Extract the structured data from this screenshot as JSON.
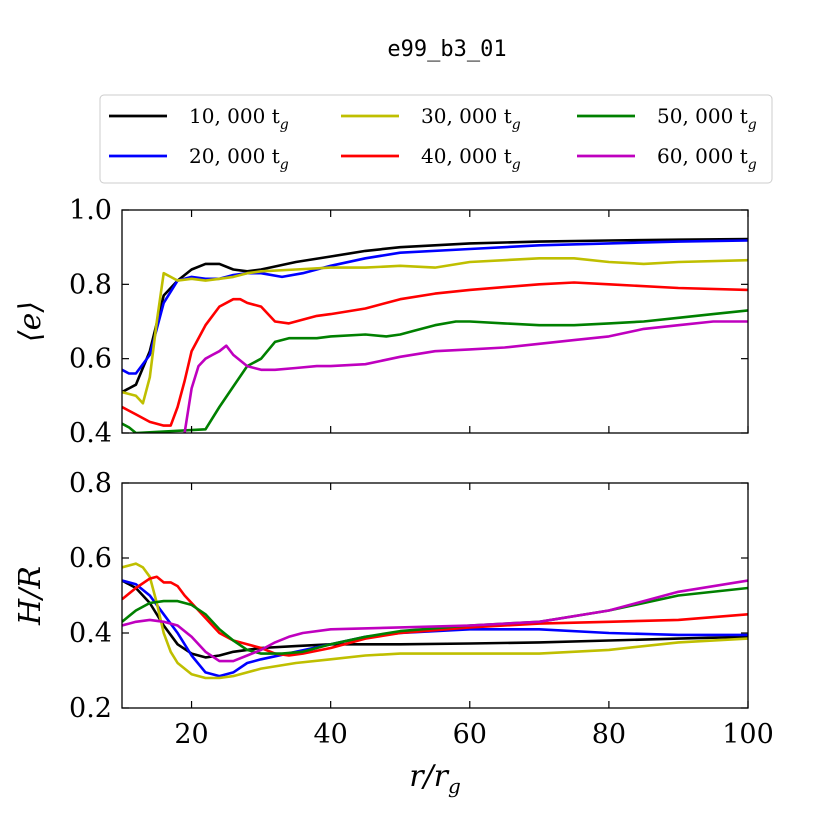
{
  "chart_data": {
    "type": "line",
    "title": "e99_b3_01",
    "legend": {
      "placement": "top",
      "entries": [
        {
          "label": "10, 000 t",
          "sub": "g",
          "color": "#000000"
        },
        {
          "label": "20, 000 t",
          "sub": "g",
          "color": "#0000ff"
        },
        {
          "label": "30, 000 t",
          "sub": "g",
          "color": "#bfbf00"
        },
        {
          "label": "40, 000 t",
          "sub": "g",
          "color": "#ff0000"
        },
        {
          "label": "50, 000 t",
          "sub": "g",
          "color": "#008000"
        },
        {
          "label": "60, 000 t",
          "sub": "g",
          "color": "#bf00bf"
        }
      ]
    },
    "xlabel": "r/r",
    "xlabel_sub": "g",
    "xlim": [
      10,
      100
    ],
    "xticks": [
      20,
      40,
      60,
      80,
      100
    ],
    "panels": [
      {
        "ylabel": "⟨e⟩",
        "ylim": [
          0.4,
          1.0
        ],
        "yticks": [
          "0.4",
          "0.6",
          "0.8",
          "1.0"
        ],
        "series": [
          {
            "name": "10, 000 t_g",
            "color": "#000000",
            "x": [
              10,
              12,
              14,
              16,
              18,
              20,
              22,
              24,
              26,
              28,
              30,
              35,
              40,
              45,
              50,
              60,
              70,
              80,
              90,
              100
            ],
            "y": [
              0.51,
              0.53,
              0.62,
              0.77,
              0.81,
              0.84,
              0.855,
              0.855,
              0.84,
              0.835,
              0.84,
              0.86,
              0.875,
              0.89,
              0.9,
              0.91,
              0.915,
              0.918,
              0.92,
              0.922
            ]
          },
          {
            "name": "20, 000 t_g",
            "color": "#0000ff",
            "x": [
              10,
              11,
              12,
              14,
              16,
              18,
              20,
              22,
              24,
              26,
              28,
              30,
              33,
              36,
              40,
              45,
              50,
              60,
              70,
              80,
              90,
              100
            ],
            "y": [
              0.57,
              0.56,
              0.56,
              0.61,
              0.75,
              0.81,
              0.82,
              0.815,
              0.815,
              0.825,
              0.83,
              0.83,
              0.82,
              0.83,
              0.85,
              0.87,
              0.885,
              0.895,
              0.905,
              0.91,
              0.915,
              0.918
            ]
          },
          {
            "name": "30, 000 t_g",
            "color": "#bfbf00",
            "x": [
              10,
              12,
              13,
              14,
              15,
              16,
              17,
              18,
              20,
              22,
              24,
              26,
              28,
              30,
              35,
              40,
              45,
              50,
              55,
              60,
              70,
              75,
              80,
              85,
              90,
              100
            ],
            "y": [
              0.51,
              0.5,
              0.48,
              0.55,
              0.7,
              0.83,
              0.82,
              0.81,
              0.815,
              0.81,
              0.815,
              0.82,
              0.83,
              0.835,
              0.84,
              0.845,
              0.845,
              0.85,
              0.845,
              0.86,
              0.87,
              0.87,
              0.86,
              0.855,
              0.86,
              0.865
            ]
          },
          {
            "name": "40, 000 t_g",
            "color": "#ff0000",
            "x": [
              10,
              12,
              14,
              16,
              17,
              18,
              19,
              20,
              22,
              24,
              26,
              27,
              28,
              30,
              32,
              34,
              36,
              38,
              40,
              45,
              50,
              55,
              60,
              70,
              75,
              80,
              90,
              100
            ],
            "y": [
              0.47,
              0.45,
              0.43,
              0.42,
              0.42,
              0.47,
              0.54,
              0.62,
              0.69,
              0.74,
              0.76,
              0.76,
              0.75,
              0.74,
              0.7,
              0.695,
              0.705,
              0.715,
              0.72,
              0.735,
              0.76,
              0.775,
              0.785,
              0.8,
              0.805,
              0.8,
              0.79,
              0.785
            ]
          },
          {
            "name": "50, 000 t_g",
            "color": "#008000",
            "x": [
              10,
              11,
              12,
              22,
              24,
              26,
              28,
              30,
              32,
              34,
              36,
              38,
              40,
              45,
              48,
              50,
              52,
              55,
              58,
              60,
              65,
              70,
              75,
              80,
              85,
              90,
              95,
              100
            ],
            "y": [
              0.425,
              0.415,
              0.4,
              0.41,
              0.47,
              0.525,
              0.58,
              0.6,
              0.645,
              0.655,
              0.655,
              0.655,
              0.66,
              0.665,
              0.66,
              0.665,
              0.675,
              0.69,
              0.7,
              0.7,
              0.695,
              0.69,
              0.69,
              0.695,
              0.7,
              0.71,
              0.72,
              0.73
            ]
          },
          {
            "name": "60, 000 t_g",
            "color": "#bf00bf",
            "x": [
              19,
              20,
              21,
              22,
              23,
              24,
              25,
              26,
              28,
              30,
              32,
              35,
              38,
              40,
              45,
              50,
              55,
              60,
              65,
              70,
              75,
              80,
              85,
              90,
              95,
              100
            ],
            "y": [
              0.4,
              0.52,
              0.58,
              0.6,
              0.61,
              0.62,
              0.635,
              0.61,
              0.58,
              0.57,
              0.57,
              0.575,
              0.58,
              0.58,
              0.585,
              0.605,
              0.62,
              0.625,
              0.63,
              0.64,
              0.65,
              0.66,
              0.68,
              0.69,
              0.7,
              0.7
            ]
          }
        ]
      },
      {
        "ylabel": "H/R",
        "ylim": [
          0.2,
          0.8
        ],
        "yticks": [
          "0.2",
          "0.4",
          "0.6",
          "0.8"
        ],
        "series": [
          {
            "name": "10, 000 t_g",
            "color": "#000000",
            "x": [
              10,
              12,
              14,
              16,
              18,
              20,
              22,
              24,
              26,
              28,
              30,
              35,
              40,
              50,
              60,
              70,
              80,
              90,
              100
            ],
            "y": [
              0.54,
              0.52,
              0.48,
              0.42,
              0.37,
              0.345,
              0.335,
              0.34,
              0.35,
              0.355,
              0.36,
              0.365,
              0.37,
              0.37,
              0.372,
              0.375,
              0.38,
              0.385,
              0.39
            ]
          },
          {
            "name": "20, 000 t_g",
            "color": "#0000ff",
            "x": [
              10,
              12,
              14,
              16,
              18,
              20,
              22,
              24,
              26,
              28,
              30,
              35,
              40,
              45,
              50,
              60,
              70,
              80,
              90,
              100
            ],
            "y": [
              0.54,
              0.53,
              0.5,
              0.45,
              0.4,
              0.34,
              0.295,
              0.285,
              0.295,
              0.32,
              0.33,
              0.35,
              0.37,
              0.39,
              0.4,
              0.41,
              0.41,
              0.4,
              0.395,
              0.395
            ]
          },
          {
            "name": "30, 000 t_g",
            "color": "#bfbf00",
            "x": [
              10,
              11,
              12,
              13,
              14,
              15,
              16,
              17,
              18,
              20,
              22,
              24,
              26,
              28,
              30,
              35,
              40,
              45,
              50,
              60,
              70,
              80,
              90,
              100
            ],
            "y": [
              0.575,
              0.58,
              0.585,
              0.575,
              0.55,
              0.48,
              0.4,
              0.35,
              0.32,
              0.29,
              0.28,
              0.28,
              0.285,
              0.295,
              0.305,
              0.32,
              0.33,
              0.34,
              0.345,
              0.345,
              0.345,
              0.355,
              0.375,
              0.385
            ]
          },
          {
            "name": "40, 000 t_g",
            "color": "#ff0000",
            "x": [
              10,
              12,
              14,
              15,
              16,
              17,
              18,
              19,
              20,
              22,
              24,
              26,
              28,
              30,
              32,
              34,
              36,
              40,
              45,
              50,
              60,
              70,
              80,
              90,
              100
            ],
            "y": [
              0.49,
              0.52,
              0.545,
              0.55,
              0.535,
              0.535,
              0.525,
              0.5,
              0.48,
              0.44,
              0.4,
              0.38,
              0.37,
              0.36,
              0.345,
              0.34,
              0.345,
              0.36,
              0.385,
              0.4,
              0.415,
              0.425,
              0.43,
              0.435,
              0.45
            ]
          },
          {
            "name": "50, 000 t_g",
            "color": "#008000",
            "x": [
              10,
              12,
              14,
              16,
              18,
              20,
              22,
              24,
              26,
              28,
              30,
              33,
              36,
              40,
              45,
              50,
              60,
              70,
              80,
              90,
              100
            ],
            "y": [
              0.43,
              0.46,
              0.48,
              0.485,
              0.485,
              0.475,
              0.45,
              0.41,
              0.38,
              0.355,
              0.345,
              0.345,
              0.35,
              0.37,
              0.39,
              0.405,
              0.42,
              0.43,
              0.46,
              0.5,
              0.52
            ]
          },
          {
            "name": "60, 000 t_g",
            "color": "#bf00bf",
            "x": [
              10,
              12,
              14,
              16,
              18,
              20,
              22,
              24,
              26,
              28,
              30,
              32,
              34,
              36,
              40,
              50,
              60,
              70,
              80,
              90,
              100
            ],
            "y": [
              0.42,
              0.43,
              0.435,
              0.43,
              0.42,
              0.39,
              0.35,
              0.325,
              0.325,
              0.34,
              0.355,
              0.375,
              0.39,
              0.4,
              0.41,
              0.415,
              0.42,
              0.43,
              0.46,
              0.51,
              0.54
            ]
          }
        ]
      }
    ]
  }
}
